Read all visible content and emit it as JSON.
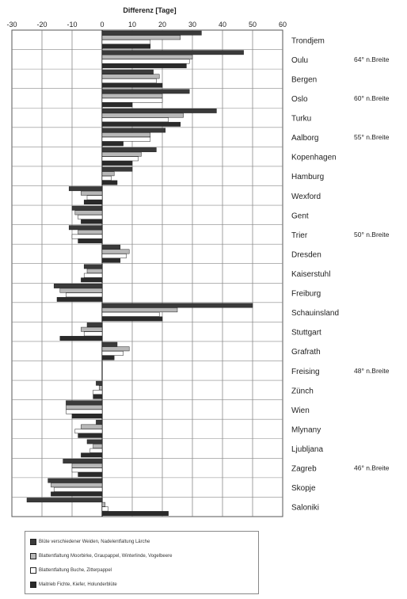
{
  "chart_data": {
    "type": "bar",
    "orientation": "horizontal",
    "title": "Differenz [Tage]",
    "xlabel": "Differenz [Tage]",
    "ylabel": "",
    "xlim": [
      -30,
      60
    ],
    "x_ticks": [
      "-30",
      "-20",
      "-10",
      "0",
      "10",
      "20",
      "30",
      "40",
      "50",
      "60"
    ],
    "grid": true,
    "legend_position": "bottom",
    "categories": [
      "Trondjem",
      "Oulu",
      "Bergen",
      "Oslo",
      "Turku",
      "Aalborg",
      "Kopenhagen",
      "Hamburg",
      "Wexford",
      "Gent",
      "Trier",
      "Dresden",
      "Kaiserstuhl",
      "Freiburg",
      "Schauinsland",
      "Stuttgart",
      "Grafrath",
      "Freising",
      "Zünch",
      "Wien",
      "Mlynany",
      "Ljubljana",
      "Zagreb",
      "Skopje",
      "Saloniki"
    ],
    "series": [
      {
        "name": "Blüte verschiedener Weiden, Nadelentfaltung Lärche",
        "color": "#3a3a3a",
        "values": [
          33,
          47,
          17,
          29,
          38,
          21,
          18,
          10,
          -11,
          -10,
          -11,
          6,
          -6,
          -16,
          50,
          -5,
          5,
          0,
          -2,
          -12,
          -2,
          -5,
          -13,
          -18,
          -25
        ]
      },
      {
        "name": "Blattentfaltung Moorbirke, Graupappel, Winterlinde, Vogelbeere",
        "color": "#b8b8b8",
        "values": [
          26,
          30,
          19,
          20,
          27,
          16,
          13,
          4,
          -7,
          -9,
          -8,
          9,
          -5,
          -14,
          25,
          -7,
          9,
          0,
          -1,
          -12,
          -7,
          -3,
          -10,
          -17,
          1
        ]
      },
      {
        "name": "Blattentfaltung Buche, Zitterpappel",
        "color": "#ffffff",
        "values": [
          16,
          29,
          18,
          20,
          22,
          16,
          12,
          3,
          -5,
          -8,
          -10,
          8,
          -6,
          -12,
          19,
          -6,
          7,
          0,
          -3,
          -12,
          -9,
          -4,
          -10,
          -16,
          2
        ]
      },
      {
        "name": "Maitrieb Fichte, Kiefer, Holunderblüte",
        "color": "#2a2a2a",
        "values": [
          16,
          28,
          20,
          10,
          26,
          7,
          10,
          5,
          -6,
          -7,
          -8,
          6,
          -7,
          -15,
          20,
          -14,
          4,
          0,
          -3,
          -10,
          -8,
          -7,
          -8,
          -17,
          22
        ]
      }
    ],
    "latitude_labels": [
      {
        "label": "64° n.Breite",
        "category": "Oulu"
      },
      {
        "label": "60° n.Breite",
        "category": "Oslo"
      },
      {
        "label": "55° n.Breite",
        "category": "Aalborg"
      },
      {
        "label": "50° n.Breite",
        "category": "Trier"
      },
      {
        "label": "48° n.Breite",
        "category": "Freising"
      },
      {
        "label": "46° n.Breite",
        "category": "Zagreb"
      }
    ]
  }
}
